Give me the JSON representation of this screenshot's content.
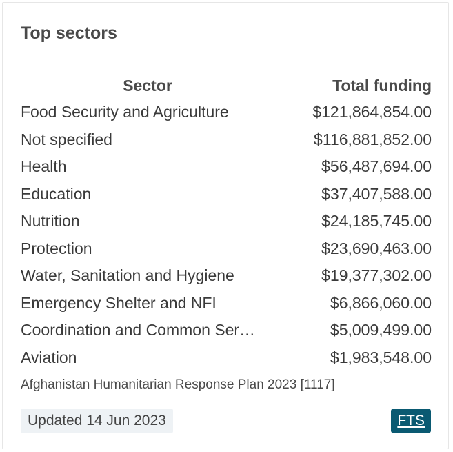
{
  "card": {
    "title": "Top sectors",
    "table": {
      "headers": {
        "sector": "Sector",
        "funding": "Total funding"
      },
      "rows": [
        {
          "sector": "Food Security and Agriculture",
          "funding": "$121,864,854.00"
        },
        {
          "sector": "Not specified",
          "funding": "$116,881,852.00"
        },
        {
          "sector": "Health",
          "funding": "$56,487,694.00"
        },
        {
          "sector": "Education",
          "funding": "$37,407,588.00"
        },
        {
          "sector": "Nutrition",
          "funding": "$24,185,745.00"
        },
        {
          "sector": "Protection",
          "funding": "$23,690,463.00"
        },
        {
          "sector": "Water, Sanitation and Hygiene",
          "funding": "$19,377,302.00"
        },
        {
          "sector": "Emergency Shelter and NFI",
          "funding": "$6,866,060.00"
        },
        {
          "sector": "Coordination and Common Ser…",
          "funding": "$5,009,499.00"
        },
        {
          "sector": "Aviation",
          "funding": "$1,983,548.00"
        }
      ]
    },
    "source": "Afghanistan Humanitarian Response Plan 2023 [1117]",
    "updated": "Updated 14 Jun 2023",
    "link_label": "FTS"
  },
  "colors": {
    "link_background": "#0a5a72",
    "badge_background": "#eef2f5",
    "text": "#333333"
  }
}
